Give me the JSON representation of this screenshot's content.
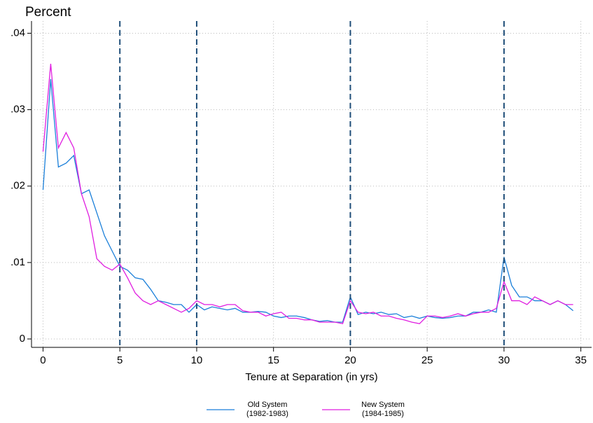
{
  "chart_data": {
    "type": "line",
    "ylabel": "Percent",
    "xlabel": "Tenure at Separation (in yrs)",
    "x": [
      0,
      0.5,
      1,
      1.5,
      2,
      2.5,
      3,
      3.5,
      4,
      4.5,
      5,
      5.5,
      6,
      6.5,
      7,
      7.5,
      8,
      8.5,
      9,
      9.5,
      10,
      10.5,
      11,
      11.5,
      12,
      12.5,
      13,
      13.5,
      14,
      14.5,
      15,
      15.5,
      16,
      16.5,
      17,
      17.5,
      18,
      18.5,
      19,
      19.5,
      20,
      20.5,
      21,
      21.5,
      22,
      22.5,
      23,
      23.5,
      24,
      24.5,
      25,
      25.5,
      26,
      26.5,
      27,
      27.5,
      28,
      28.5,
      29,
      29.5,
      30,
      30.5,
      31,
      31.5,
      32,
      32.5,
      33,
      33.5,
      34,
      34.5
    ],
    "series": [
      {
        "name": "Old System (1982-1983)",
        "color": "#1a7fd9",
        "values": [
          0.0195,
          0.034,
          0.0225,
          0.023,
          0.024,
          0.019,
          0.0195,
          0.0165,
          0.0135,
          0.0115,
          0.0095,
          0.009,
          0.008,
          0.0078,
          0.0065,
          0.005,
          0.0048,
          0.0045,
          0.0045,
          0.0035,
          0.0045,
          0.0038,
          0.0042,
          0.004,
          0.0038,
          0.004,
          0.0035,
          0.0035,
          0.0036,
          0.0035,
          0.003,
          0.0028,
          0.003,
          0.003,
          0.0028,
          0.0025,
          0.0023,
          0.0024,
          0.0022,
          0.0022,
          0.0055,
          0.0032,
          0.0035,
          0.0033,
          0.0035,
          0.0032,
          0.0033,
          0.0028,
          0.003,
          0.0027,
          0.003,
          0.0028,
          0.0027,
          0.0028,
          0.003,
          0.003,
          0.0035,
          0.0035,
          0.0038,
          0.0035,
          0.0107,
          0.007,
          0.0055,
          0.0055,
          0.005,
          0.005,
          0.0045,
          0.005,
          0.0045,
          0.0037
        ]
      },
      {
        "name": "New System (1984-1985)",
        "color": "#e01ee0",
        "values": [
          0.0245,
          0.036,
          0.025,
          0.027,
          0.025,
          0.019,
          0.016,
          0.0105,
          0.0095,
          0.009,
          0.0098,
          0.008,
          0.006,
          0.005,
          0.0045,
          0.005,
          0.0045,
          0.004,
          0.0035,
          0.004,
          0.005,
          0.0045,
          0.0045,
          0.0042,
          0.0045,
          0.0045,
          0.0037,
          0.0035,
          0.0035,
          0.003,
          0.0033,
          0.0035,
          0.0027,
          0.0027,
          0.0025,
          0.0025,
          0.0022,
          0.0022,
          0.0022,
          0.002,
          0.005,
          0.0035,
          0.0033,
          0.0035,
          0.003,
          0.003,
          0.0027,
          0.0025,
          0.0022,
          0.002,
          0.003,
          0.003,
          0.0028,
          0.003,
          0.0033,
          0.003,
          0.0033,
          0.0035,
          0.0035,
          0.004,
          0.0075,
          0.005,
          0.005,
          0.0045,
          0.0055,
          0.005,
          0.0045,
          0.005,
          0.0045,
          0.0045
        ]
      }
    ],
    "xlim": [
      -0.75,
      35.7
    ],
    "ylim": [
      -0.0011,
      0.0416
    ],
    "xticks": [
      0,
      5,
      10,
      15,
      20,
      25,
      30,
      35
    ],
    "yticks": [
      0,
      {
        "value": 0.01,
        "label": ".01"
      },
      {
        "value": 0.02,
        "label": ".02"
      },
      {
        "value": 0.03,
        "label": ".03"
      },
      {
        "value": 0.04,
        "label": ".04"
      }
    ],
    "vlines": [
      5,
      10,
      20,
      30
    ],
    "vline_color": "#1f4e79",
    "grid": true,
    "legend": "bottom"
  }
}
